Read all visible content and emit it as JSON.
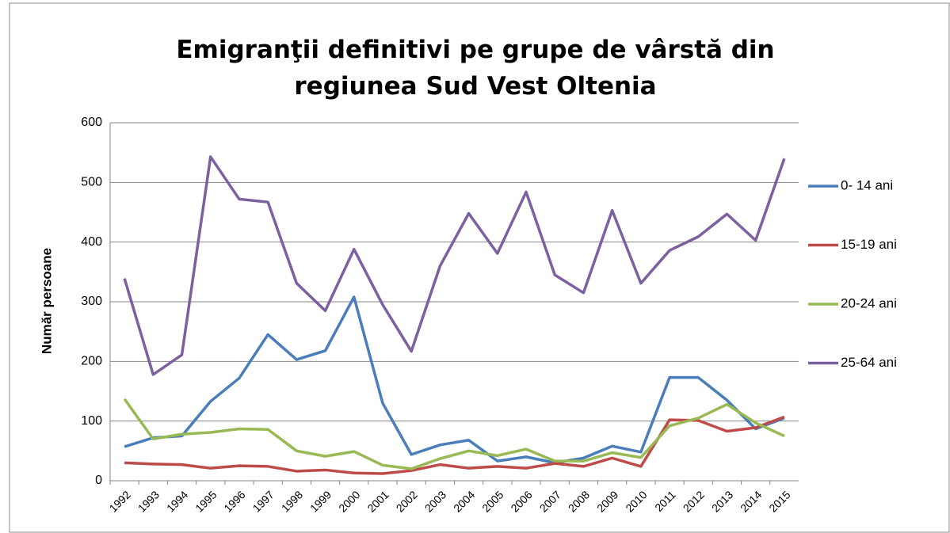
{
  "chart_data": {
    "type": "line",
    "title": "Emigranţii definitivi pe grupe de vârstă din regiunea Sud Vest Oltenia",
    "y_label": "Număr persoane",
    "categories": [
      "1992",
      "1993",
      "1994",
      "1995",
      "1996",
      "1997",
      "1998",
      "1999",
      "2000",
      "2001",
      "2002",
      "2003",
      "2004",
      "2005",
      "2006",
      "2007",
      "2008",
      "2009",
      "2010",
      "2011",
      "2012",
      "2013",
      "2014",
      "2015"
    ],
    "series": [
      {
        "name": "0- 14 ani",
        "color": "#4a7ebb",
        "values": [
          57,
          72,
          75,
          133,
          172,
          245,
          203,
          218,
          308,
          130,
          44,
          60,
          68,
          33,
          40,
          30,
          38,
          58,
          48,
          173,
          173,
          135,
          87,
          105
        ]
      },
      {
        "name": "15-19 ani",
        "color": "#be4b48",
        "values": [
          30,
          28,
          27,
          21,
          25,
          24,
          16,
          18,
          13,
          12,
          17,
          27,
          21,
          24,
          21,
          29,
          24,
          38,
          24,
          102,
          101,
          83,
          89,
          107
        ]
      },
      {
        "name": "20-24 ani",
        "color": "#98b954",
        "values": [
          137,
          70,
          78,
          81,
          87,
          86,
          50,
          41,
          49,
          26,
          20,
          37,
          50,
          42,
          53,
          33,
          33,
          47,
          39,
          92,
          105,
          128,
          97,
          75
        ]
      },
      {
        "name": "25-64 ani",
        "color": "#7d60a0",
        "values": [
          339,
          178,
          211,
          543,
          472,
          467,
          331,
          285,
          388,
          295,
          217,
          360,
          448,
          381,
          484,
          345,
          315,
          453,
          331,
          386,
          409,
          447,
          403,
          540
        ]
      }
    ],
    "ylim": [
      0,
      600
    ],
    "yticks": [
      0,
      100,
      200,
      300,
      400,
      500,
      600
    ],
    "grid": true,
    "legend": "right"
  }
}
